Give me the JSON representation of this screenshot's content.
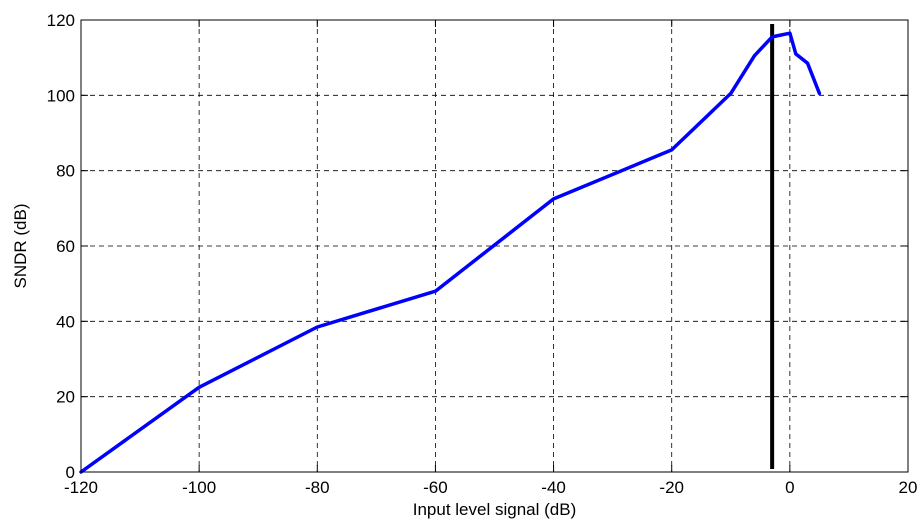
{
  "chart_data": {
    "type": "line",
    "title": "",
    "xlabel": "Input level signal (dB)",
    "ylabel": "SNDR (dB)",
    "xlim": [
      -120,
      20
    ],
    "ylim": [
      0,
      120
    ],
    "xticks": [
      -120,
      -100,
      -80,
      -60,
      -40,
      -20,
      0,
      20
    ],
    "yticks": [
      0,
      20,
      40,
      60,
      80,
      100,
      120
    ],
    "xtick_labels": [
      "-120",
      "-100",
      "-80",
      "-60",
      "-40",
      "-20",
      "0",
      "20"
    ],
    "ytick_labels": [
      "0",
      "20",
      "40",
      "60",
      "80",
      "100",
      "120"
    ],
    "grid": true,
    "series": [
      {
        "color": "#0000ff",
        "x": [
          -120,
          -100,
          -80,
          -60,
          -40,
          -20,
          -10,
          -6,
          -3,
          0,
          1,
          3,
          5
        ],
        "y": [
          0,
          22.5,
          38.5,
          48,
          72.5,
          85.5,
          100.5,
          110.5,
          115.5,
          116.5,
          111,
          108.5,
          100.5
        ]
      }
    ],
    "vertical_marker": {
      "x": -3,
      "color": "#000000"
    }
  }
}
